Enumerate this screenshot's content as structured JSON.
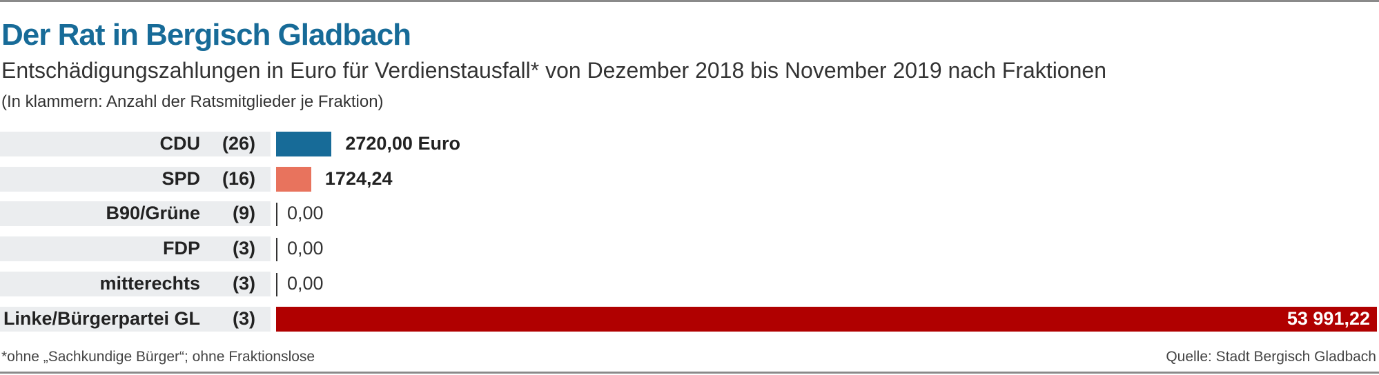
{
  "header": {
    "title": "Der Rat in Bergisch Gladbach",
    "subtitle": "Entschädigungszahlungen in Euro für Verdienstausfall* von Dezember 2018 bis November 2019 nach Fraktionen",
    "note": "(In klammern: Anzahl der Ratsmitglieder je Fraktion)"
  },
  "footer": {
    "footnote": "*ohne „Sachkundige Bürger“; ohne Fraktionslose",
    "source": "Quelle: Stadt Bergisch Gladbach"
  },
  "chart_data": {
    "type": "bar",
    "orientation": "horizontal",
    "title": "Der Rat in Bergisch Gladbach",
    "categories": [
      "CDU",
      "SPD",
      "B90/Grüne",
      "FDP",
      "mitterechts",
      "Linke/Bürgerpartei GL"
    ],
    "members": [
      "(26)",
      "(16)",
      "(9)",
      "(3)",
      "(3)",
      "(3)"
    ],
    "values": [
      2720.0,
      1724.24,
      0,
      0,
      0,
      53991.22
    ],
    "value_labels": [
      "2720,00 Euro",
      "1724,24",
      "0,00",
      "0,00",
      "0,00",
      "53 991,22"
    ],
    "colors": [
      "#176b98",
      "#e8735d",
      "#333333",
      "#333333",
      "#333333",
      "#b00000"
    ],
    "xlim": [
      0,
      53991.22
    ],
    "grid": false
  }
}
